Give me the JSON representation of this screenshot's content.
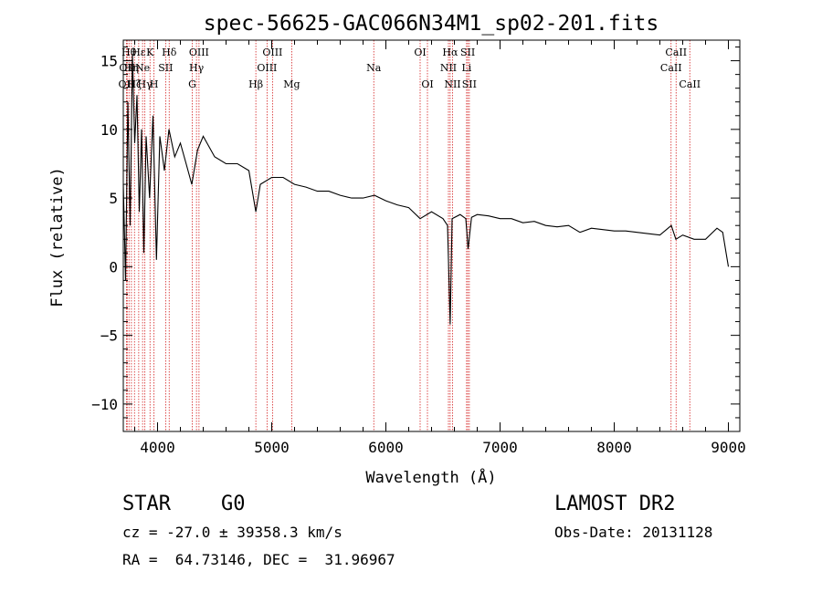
{
  "chart_data": {
    "type": "line",
    "title": "spec-56625-GAC066N34M1_sp02-201.fits",
    "xlabel": "Wavelength (Å)",
    "ylabel": "Flux (relative)",
    "xlim": [
      3700,
      9100
    ],
    "ylim": [
      -12,
      16.5
    ],
    "xticks": [
      4000,
      5000,
      6000,
      7000,
      8000,
      9000
    ],
    "yticks": [
      -10,
      -5,
      0,
      5,
      10,
      15
    ],
    "grid": false,
    "series": [
      {
        "color": "#000000",
        "x": [
          3700,
          3720,
          3740,
          3760,
          3780,
          3800,
          3820,
          3840,
          3860,
          3880,
          3900,
          3930,
          3960,
          3990,
          4020,
          4060,
          4100,
          4150,
          4200,
          4250,
          4300,
          4350,
          4400,
          4500,
          4600,
          4700,
          4800,
          4861,
          4900,
          5000,
          5100,
          5200,
          5300,
          5400,
          5500,
          5600,
          5700,
          5800,
          5900,
          6000,
          6100,
          6200,
          6300,
          6400,
          6500,
          6540,
          6563,
          6580,
          6650,
          6700,
          6720,
          6750,
          6800,
          6900,
          7000,
          7100,
          7200,
          7300,
          7400,
          7500,
          7600,
          7700,
          7800,
          7900,
          8000,
          8100,
          8200,
          8300,
          8400,
          8500,
          8540,
          8600,
          8700,
          8800,
          8900,
          8950,
          8980,
          9000
        ],
        "y": [
          6.0,
          -1.0,
          12.0,
          3.0,
          15.5,
          9.0,
          12.5,
          4.0,
          10.0,
          1.0,
          9.5,
          5.0,
          11.0,
          0.5,
          9.5,
          7.0,
          10.0,
          8.0,
          9.0,
          7.5,
          6.0,
          8.5,
          9.5,
          8.0,
          7.5,
          7.5,
          7.0,
          4.0,
          6.0,
          6.5,
          6.5,
          6.0,
          5.8,
          5.5,
          5.5,
          5.2,
          5.0,
          5.0,
          5.2,
          4.8,
          4.5,
          4.3,
          3.5,
          4.0,
          3.5,
          3.0,
          -4.2,
          3.5,
          3.8,
          3.5,
          1.3,
          3.6,
          3.8,
          3.7,
          3.5,
          3.5,
          3.2,
          3.3,
          3.0,
          2.9,
          3.0,
          2.5,
          2.8,
          2.7,
          2.6,
          2.6,
          2.5,
          2.4,
          2.3,
          3.0,
          2.0,
          2.3,
          2.0,
          2.0,
          2.8,
          2.5,
          1.0,
          0.0
        ]
      }
    ],
    "lines": [
      {
        "x": 3727,
        "label": "OII",
        "row": 3
      },
      {
        "x": 3734,
        "label": "OII",
        "row": 2
      },
      {
        "x": 3750,
        "label": "Hθ",
        "row": 1
      },
      {
        "x": 3771,
        "label": "Hη",
        "row": 2
      },
      {
        "x": 3798,
        "label": "Hζ",
        "row": 3
      },
      {
        "x": 3835,
        "label": "Hε",
        "row": 1
      },
      {
        "x": 3869,
        "label": "Ne",
        "row": 2
      },
      {
        "x": 3889,
        "label": "Hγ",
        "row": 3
      },
      {
        "x": 3934,
        "label": "K",
        "row": 1
      },
      {
        "x": 3969,
        "label": "H",
        "row": 3
      },
      {
        "x": 4071,
        "label": "SII",
        "row": 2
      },
      {
        "x": 4102,
        "label": "Hδ",
        "row": 1
      },
      {
        "x": 4304,
        "label": "G",
        "row": 3
      },
      {
        "x": 4341,
        "label": "Hγ",
        "row": 2
      },
      {
        "x": 4363,
        "label": "OIII",
        "row": 1
      },
      {
        "x": 4861,
        "label": "Hβ",
        "row": 3
      },
      {
        "x": 4959,
        "label": "OIII",
        "row": 2
      },
      {
        "x": 5007,
        "label": "OIII",
        "row": 1
      },
      {
        "x": 5175,
        "label": "Mg",
        "row": 3
      },
      {
        "x": 5894,
        "label": "Na",
        "row": 2
      },
      {
        "x": 6300,
        "label": "OI",
        "row": 1
      },
      {
        "x": 6364,
        "label": "OI",
        "row": 3
      },
      {
        "x": 6548,
        "label": "NII",
        "row": 2
      },
      {
        "x": 6563,
        "label": "Hα",
        "row": 1
      },
      {
        "x": 6584,
        "label": "NII",
        "row": 3
      },
      {
        "x": 6707,
        "label": "Li",
        "row": 2
      },
      {
        "x": 6717,
        "label": "SII",
        "row": 1
      },
      {
        "x": 6731,
        "label": "SII",
        "row": 3
      },
      {
        "x": 8498,
        "label": "CaII",
        "row": 2
      },
      {
        "x": 8542,
        "label": "CaII",
        "row": 1
      },
      {
        "x": 8662,
        "label": "CaII",
        "row": 3
      }
    ]
  },
  "info": {
    "class_label": "STAR",
    "subclass_label": "G0",
    "survey_label": "LAMOST DR2",
    "cz_text": "cz = -27.0 ± 39358.3 km/s",
    "obsdate_text": "Obs-Date: 20131128",
    "radec_text": "RA =  64.73146, DEC =  31.96967"
  },
  "colors": {
    "axis": "#000000",
    "spectrum": "#000000",
    "line_marker": "#d42020"
  }
}
